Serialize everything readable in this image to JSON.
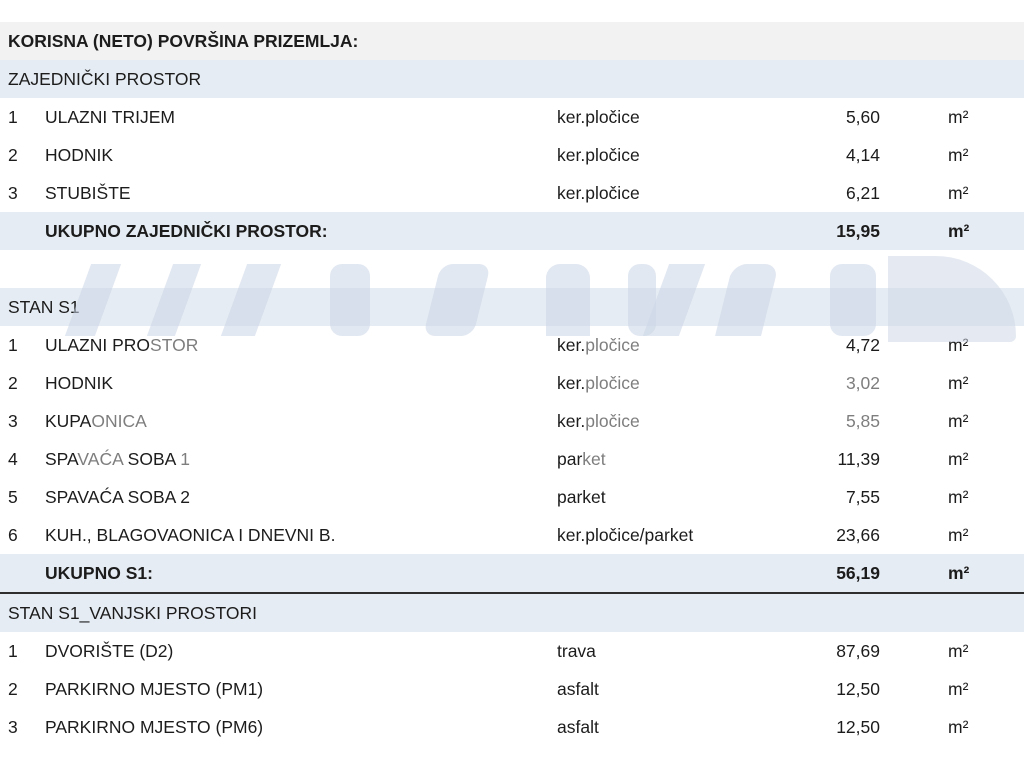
{
  "title": "KORISNA (NETO) POVRŠINA PRIZEMLJA:",
  "unit": "m²",
  "colors": {
    "band": "#e6ecf3",
    "title_band": "#f2f2f2",
    "text": "#1c1c1c",
    "faded_text": "#7e7e7e",
    "rule": "#2e2e2e",
    "watermark": "#cbd5e5"
  },
  "sections": [
    {
      "header": "ZAJEDNIČKI PROSTOR",
      "rows": [
        {
          "num": "1",
          "name": [
            {
              "text": "ULAZNI TRIJEM",
              "faded": false
            }
          ],
          "material": [
            {
              "text": "ker.pločice",
              "faded": false
            }
          ],
          "value": [
            {
              "text": "5,60",
              "faded": false
            }
          ]
        },
        {
          "num": "2",
          "name": [
            {
              "text": "HODNIK",
              "faded": false
            }
          ],
          "material": [
            {
              "text": "ker.pločice",
              "faded": false
            }
          ],
          "value": [
            {
              "text": "4,14",
              "faded": false
            }
          ]
        },
        {
          "num": "3",
          "name": [
            {
              "text": "STUBIŠTE",
              "faded": false
            }
          ],
          "material": [
            {
              "text": "ker.pločice",
              "faded": false
            }
          ],
          "value": [
            {
              "text": "6,21",
              "faded": false
            }
          ]
        }
      ],
      "total": {
        "label": "UKUPNO ZAJEDNIČKI PROSTOR:",
        "value": "15,95"
      },
      "gap_before": false,
      "rule_below": false
    },
    {
      "header": "STAN S1",
      "rows": [
        {
          "num": "1",
          "name": [
            {
              "text": "ULAZNI PRO",
              "faded": false
            },
            {
              "text": "STOR",
              "faded": true
            }
          ],
          "material": [
            {
              "text": "ker.",
              "faded": false
            },
            {
              "text": "pločice",
              "faded": true
            }
          ],
          "value": [
            {
              "text": "4,72",
              "faded": false
            }
          ]
        },
        {
          "num": "2",
          "name": [
            {
              "text": "HODNIK",
              "faded": false
            }
          ],
          "material": [
            {
              "text": "ker.",
              "faded": false
            },
            {
              "text": "pločice",
              "faded": true
            }
          ],
          "value": [
            {
              "text": "3,02",
              "faded": true
            }
          ]
        },
        {
          "num": "3",
          "name": [
            {
              "text": "KUPA",
              "faded": false
            },
            {
              "text": "ONICA",
              "faded": true
            }
          ],
          "material": [
            {
              "text": "ker.",
              "faded": false
            },
            {
              "text": "pločice",
              "faded": true
            }
          ],
          "value": [
            {
              "text": "5,85",
              "faded": true
            }
          ]
        },
        {
          "num": "4",
          "name": [
            {
              "text": "SPA",
              "faded": false
            },
            {
              "text": "VAĆA",
              "faded": true
            },
            {
              "text": " SOBA ",
              "faded": false
            },
            {
              "text": "1",
              "faded": true
            }
          ],
          "material": [
            {
              "text": "par",
              "faded": false
            },
            {
              "text": "ket",
              "faded": true
            }
          ],
          "value": [
            {
              "text": "11,39",
              "faded": false
            }
          ]
        },
        {
          "num": "5",
          "name": [
            {
              "text": "SPAVAĆA SOBA 2",
              "faded": false
            }
          ],
          "material": [
            {
              "text": "parket",
              "faded": false
            }
          ],
          "value": [
            {
              "text": "7,55",
              "faded": false
            }
          ]
        },
        {
          "num": "6",
          "name": [
            {
              "text": "KUH., BLAGOVAONICA I DNEVNI B.",
              "faded": false
            }
          ],
          "material": [
            {
              "text": "ker.pločice/parket",
              "faded": false
            }
          ],
          "value": [
            {
              "text": "23,66",
              "faded": false
            }
          ]
        }
      ],
      "total": {
        "label": "UKUPNO S1:",
        "value": "56,19"
      },
      "gap_before": true,
      "rule_below": true
    },
    {
      "header": "STAN S1_VANJSKI PROSTORI",
      "rows": [
        {
          "num": "1",
          "name": [
            {
              "text": "DVORIŠTE (D2)",
              "faded": false
            }
          ],
          "material": [
            {
              "text": "trava",
              "faded": false
            }
          ],
          "value": [
            {
              "text": "87,69",
              "faded": false
            }
          ]
        },
        {
          "num": "2",
          "name": [
            {
              "text": "PARKIRNO MJESTO (PM1)",
              "faded": false
            }
          ],
          "material": [
            {
              "text": "asfalt",
              "faded": false
            }
          ],
          "value": [
            {
              "text": "12,50",
              "faded": false
            }
          ]
        },
        {
          "num": "3",
          "name": [
            {
              "text": "PARKIRNO MJESTO (PM6)",
              "faded": false
            }
          ],
          "material": [
            {
              "text": "asfalt",
              "faded": false
            }
          ],
          "value": [
            {
              "text": "12,50",
              "faded": false
            }
          ]
        }
      ],
      "total": null,
      "gap_before": false,
      "rule_below": false
    }
  ]
}
